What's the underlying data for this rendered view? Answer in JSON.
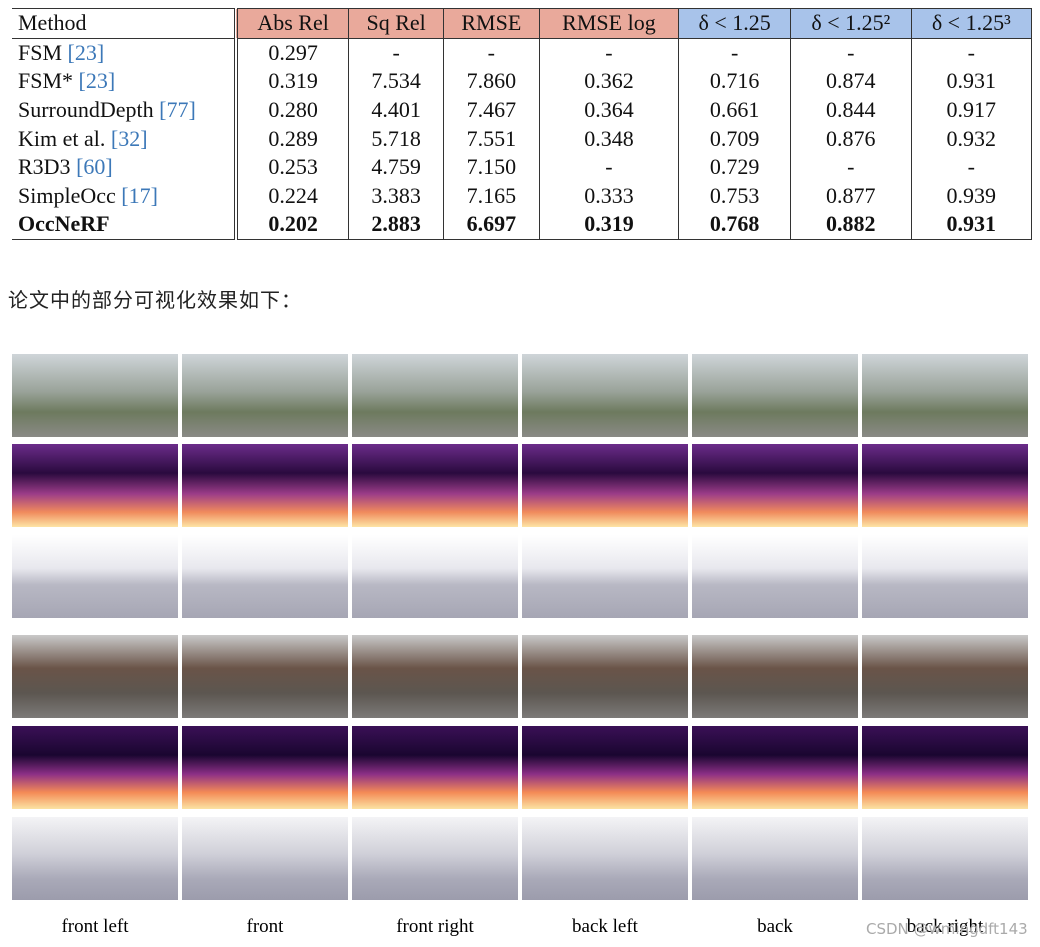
{
  "table": {
    "header": [
      "Method",
      "Abs Rel",
      "Sq Rel",
      "RMSE",
      "RMSE log",
      "δ < 1.25",
      "δ < 1.25²",
      "δ < 1.25³"
    ],
    "rows": [
      {
        "method": "FSM",
        "ref": "[23]",
        "values": [
          "0.297",
          "-",
          "-",
          "-",
          "-",
          "-",
          "-"
        ]
      },
      {
        "method": "FSM*",
        "ref": "[23]",
        "values": [
          "0.319",
          "7.534",
          "7.860",
          "0.362",
          "0.716",
          "0.874",
          "0.931"
        ]
      },
      {
        "method": "SurroundDepth",
        "ref": "[77]",
        "values": [
          "0.280",
          "4.401",
          "7.467",
          "0.364",
          "0.661",
          "0.844",
          "0.917"
        ]
      },
      {
        "method": "Kim et al.",
        "ref": "[32]",
        "values": [
          "0.289",
          "5.718",
          "7.551",
          "0.348",
          "0.709",
          "0.876",
          "0.932"
        ]
      },
      {
        "method": "R3D3",
        "ref": "[60]",
        "values": [
          "0.253",
          "4.759",
          "7.150",
          "-",
          "0.729",
          "-",
          "-"
        ]
      },
      {
        "method": "SimpleOcc",
        "ref": "[17]",
        "values": [
          "0.224",
          "3.383",
          "7.165",
          "0.333",
          "0.753",
          "0.877",
          "0.939"
        ]
      },
      {
        "method": "OccNeRF",
        "ref": null,
        "values": [
          "0.202",
          "2.883",
          "6.697",
          "0.319",
          "0.768",
          "0.882",
          "0.931"
        ]
      }
    ]
  },
  "caption": "论文中的部分可视化效果如下：",
  "views": [
    "front left",
    "front",
    "front right",
    "back left",
    "back",
    "back right"
  ],
  "watermark": "CSDN @wmingdft143"
}
